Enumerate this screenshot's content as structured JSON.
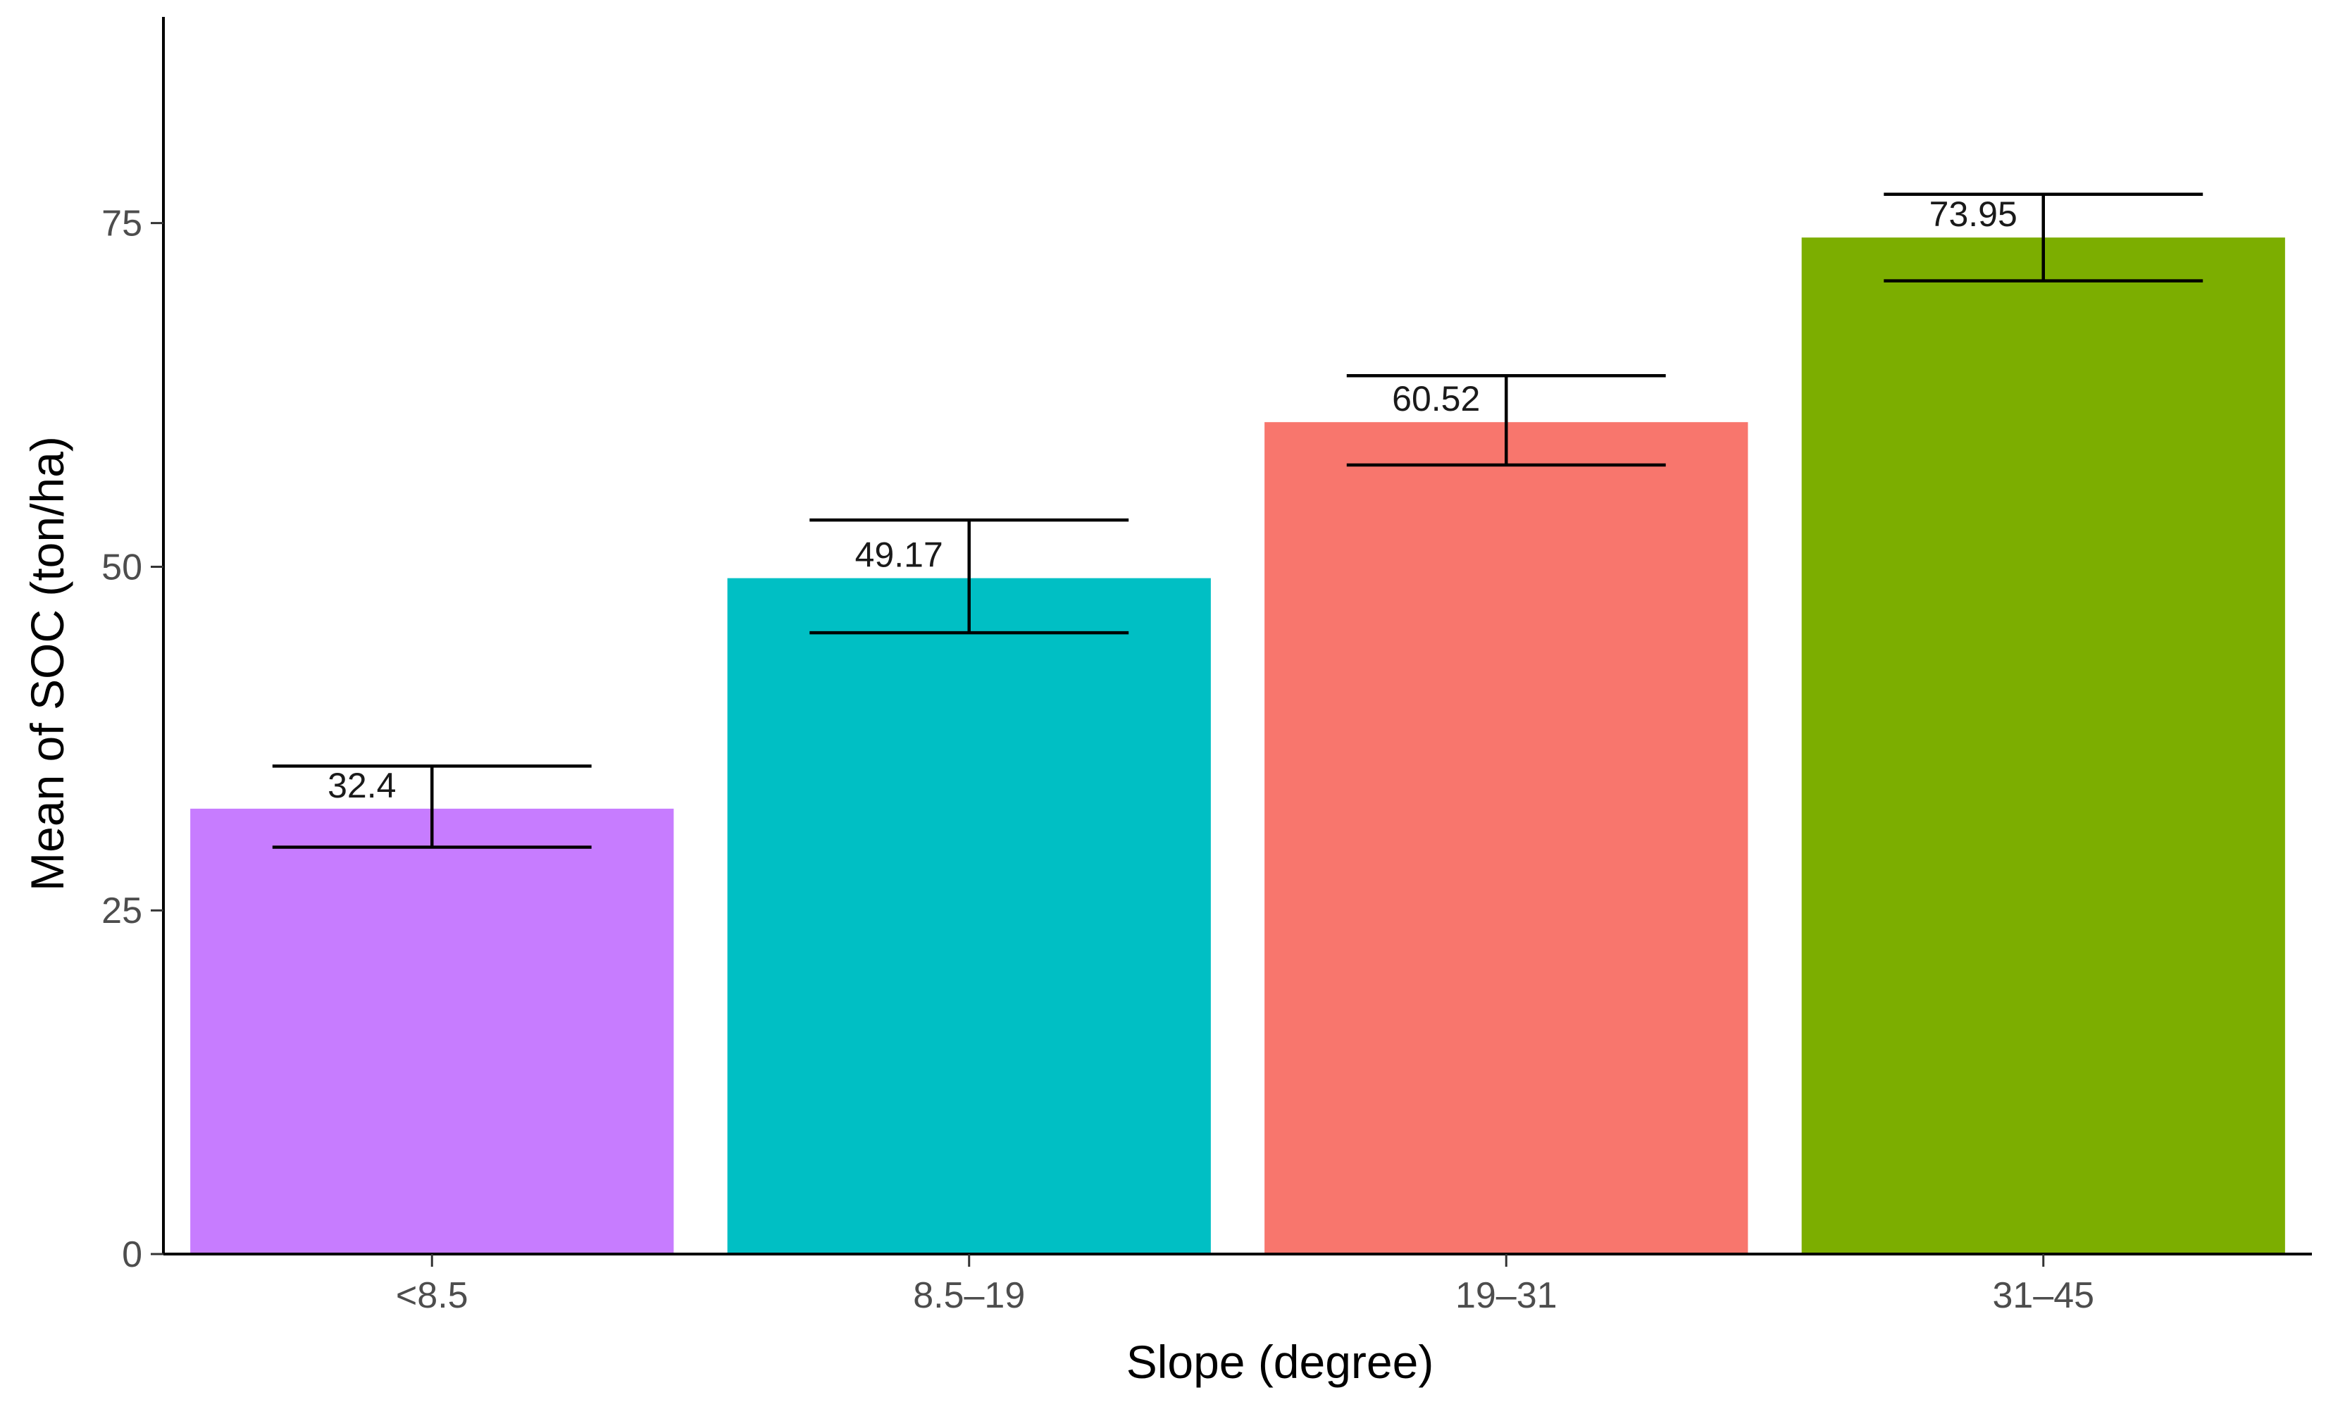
{
  "chart_data": {
    "type": "bar",
    "title": "",
    "xlabel": "Slope (degree)",
    "ylabel": "Mean of SOC (ton/ha)",
    "categories": [
      "<8.5",
      "8.5–19",
      "19–31",
      "31–45"
    ],
    "values": [
      32.4,
      49.17,
      60.52,
      73.95
    ],
    "value_labels": [
      "32.4",
      "49.17",
      "60.52",
      "73.95"
    ],
    "error_low": [
      29.6,
      45.2,
      57.4,
      70.8
    ],
    "error_high": [
      35.5,
      53.4,
      63.9,
      77.1
    ],
    "colors": [
      "#c77cff",
      "#00bfc4",
      "#f8766d",
      "#7cae00"
    ],
    "ylim": [
      0,
      90
    ],
    "yticks": [
      0,
      25,
      50,
      75
    ],
    "grid": false,
    "legend": "none"
  }
}
